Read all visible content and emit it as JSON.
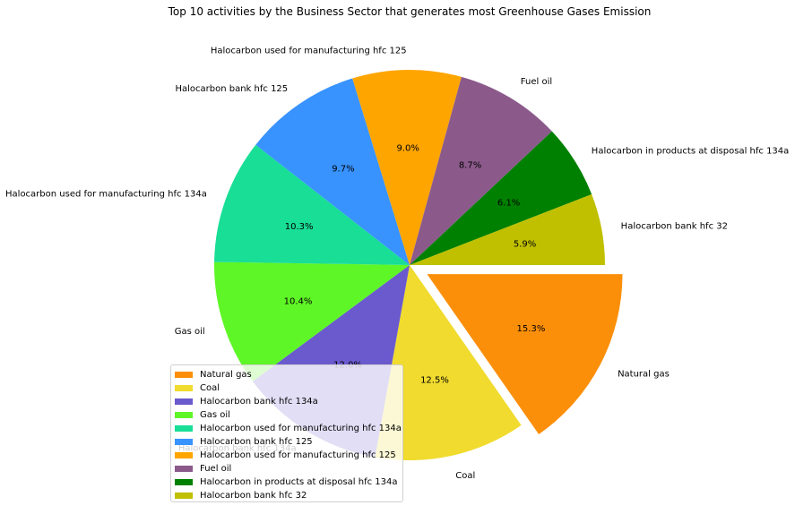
{
  "chart_data": {
    "type": "pie",
    "title": "Top 10 activities by the Business Sector that generates most Greenhouse Gases Emission",
    "slices": [
      {
        "label": "Natural gas",
        "value": 15.3,
        "pct_label": "15.3%",
        "color": "#fb8f09",
        "explode": true
      },
      {
        "label": "Coal",
        "value": 12.5,
        "pct_label": "12.5%",
        "color": "#f0db2e",
        "explode": false
      },
      {
        "label": "Halocarbon bank hfc 134a",
        "value": 12.0,
        "pct_label": "12.0%",
        "color": "#6a5acd",
        "explode": false
      },
      {
        "label": "Gas oil",
        "value": 10.4,
        "pct_label": "10.4%",
        "color": "#5ef626",
        "explode": false
      },
      {
        "label": "Halocarbon used for manufacturing hfc 134a",
        "value": 10.3,
        "pct_label": "10.3%",
        "color": "#19de96",
        "explode": false
      },
      {
        "label": "Halocarbon bank hfc 125",
        "value": 9.7,
        "pct_label": "9.7%",
        "color": "#3893ff",
        "explode": false
      },
      {
        "label": "Halocarbon used for manufacturing hfc 125",
        "value": 9.0,
        "pct_label": "9.0%",
        "color": "#ffa500",
        "explode": false
      },
      {
        "label": "Fuel oil",
        "value": 8.7,
        "pct_label": "8.7%",
        "color": "#8b5a8b",
        "explode": false
      },
      {
        "label": "Halocarbon in products at disposal hfc 134a",
        "value": 6.1,
        "pct_label": "6.1%",
        "color": "#008000",
        "explode": false
      },
      {
        "label": "Halocarbon bank hfc 32",
        "value": 5.9,
        "pct_label": "5.9%",
        "color": "#c0c000",
        "explode": false
      }
    ],
    "start_angle": "0 degrees (3 o'clock), clockwise",
    "legend_placement": "lower-left"
  }
}
